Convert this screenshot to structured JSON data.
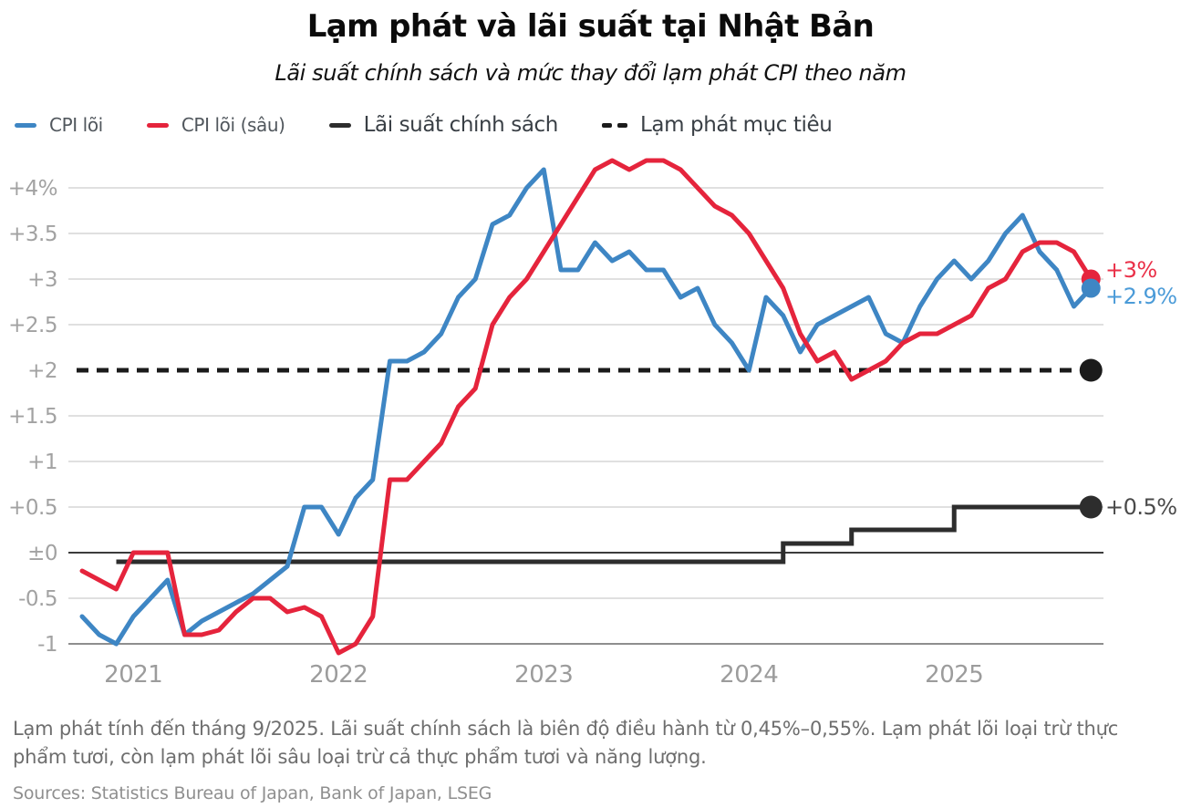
{
  "header": {
    "title": "Lạm phát và lãi suất tại Nhật Bản",
    "subtitle": "Lãi suất chính sách và mức thay đổi lạm phát CPI theo năm"
  },
  "legend": [
    {
      "label": "CPI lõi",
      "color": "#3E86C4",
      "line_style": "solid"
    },
    {
      "label": "CPI lõi (sâu)",
      "color": "#E5243C",
      "line_style": "solid"
    },
    {
      "label": "Lãi suất chính sách",
      "color": "#2D2D2D",
      "line_style": "solid"
    },
    {
      "label": "Lạm phát mục tiêu",
      "color": "#1B1B1B",
      "line_style": "dashed"
    }
  ],
  "chart_data": {
    "type": "line",
    "title": "Lạm phát và lãi suất tại Nhật Bản",
    "subtitle": "Lãi suất chính sách và mức thay đổi lạm phát CPI theo năm",
    "unit_hint": "%",
    "grid": true,
    "legend_position": "top-left",
    "start_month": "2020-10",
    "end_month": "2025-09",
    "ylim": [
      -1.3,
      4.4
    ],
    "x_ticks": [
      {
        "label": "2021",
        "month": "2021-01"
      },
      {
        "label": "2022",
        "month": "2022-01"
      },
      {
        "label": "2023",
        "month": "2023-01"
      },
      {
        "label": "2024",
        "month": "2024-01"
      },
      {
        "label": "2025",
        "month": "2025-01"
      }
    ],
    "y_ticks": [
      {
        "label": "+4%",
        "value": 4
      },
      {
        "label": "+3.5",
        "value": 3.5
      },
      {
        "label": "+3",
        "value": 3
      },
      {
        "label": "+2.5",
        "value": 2.5
      },
      {
        "label": "+2",
        "value": 2
      },
      {
        "label": "+1.5",
        "value": 1.5
      },
      {
        "label": "+1",
        "value": 1
      },
      {
        "label": "+0.5",
        "value": 0.5
      },
      {
        "label": "±0",
        "value": 0
      },
      {
        "label": "-0.5",
        "value": -0.5
      },
      {
        "label": "-1",
        "value": -1
      }
    ],
    "series": [
      {
        "name": "CPI lõi",
        "color": "#3E86C4",
        "end_label": {
          "text": "+2.9%",
          "color": "#4B9BD8"
        },
        "values": [
          -0.7,
          -0.9,
          -1.0,
          -0.7,
          -0.5,
          -0.3,
          -0.9,
          -0.75,
          -0.65,
          -0.55,
          -0.45,
          -0.3,
          -0.15,
          0.5,
          0.5,
          0.2,
          0.6,
          0.8,
          2.1,
          2.1,
          2.2,
          2.4,
          2.8,
          3.0,
          3.6,
          3.7,
          4.0,
          4.2,
          3.1,
          3.1,
          3.4,
          3.2,
          3.3,
          3.1,
          3.1,
          2.8,
          2.9,
          2.5,
          2.3,
          2.0,
          2.8,
          2.6,
          2.2,
          2.5,
          2.6,
          2.7,
          2.8,
          2.4,
          2.3,
          2.7,
          3.0,
          3.2,
          3.0,
          3.2,
          3.5,
          3.7,
          3.3,
          3.1,
          2.7,
          2.9
        ]
      },
      {
        "name": "CPI lõi (sâu)",
        "color": "#E5243C",
        "end_label": {
          "text": "+3%",
          "color": "#EA3048"
        },
        "values": [
          -0.2,
          -0.3,
          -0.4,
          0.0,
          0.0,
          0.0,
          -0.9,
          -0.9,
          -0.85,
          -0.65,
          -0.5,
          -0.5,
          -0.65,
          -0.6,
          -0.7,
          -1.1,
          -1.0,
          -0.7,
          0.8,
          0.8,
          1.0,
          1.2,
          1.6,
          1.8,
          2.5,
          2.8,
          3.0,
          3.3,
          3.6,
          3.9,
          4.2,
          4.3,
          4.2,
          4.3,
          4.3,
          4.2,
          4.0,
          3.8,
          3.7,
          3.5,
          3.2,
          2.9,
          2.4,
          2.1,
          2.2,
          1.9,
          2.0,
          2.1,
          2.3,
          2.4,
          2.4,
          2.5,
          2.6,
          2.9,
          3.0,
          3.3,
          3.4,
          3.4,
          3.3,
          3.0
        ]
      }
    ],
    "policy_rate": {
      "name": "Lãi suất chính sách",
      "color": "#2D2D2D",
      "end_label": {
        "text": "+0.5%",
        "color": "#4A4A4A"
      },
      "steps": [
        {
          "from": "2020-12",
          "to": "2024-03",
          "value": -0.1
        },
        {
          "from": "2024-03",
          "to": "2024-07",
          "value": 0.1
        },
        {
          "from": "2024-07",
          "to": "2025-01",
          "value": 0.25
        },
        {
          "from": "2025-01",
          "to": "2025-09",
          "value": 0.5
        }
      ]
    },
    "target_line": {
      "name": "Lạm phát mục tiêu",
      "value": 2,
      "style": "dashed",
      "color": "#1B1B1B"
    }
  },
  "footer": {
    "note": "Lạm phát tính đến tháng 9/2025. Lãi suất chính sách là biên độ điều hành từ 0,45%–0,55%. Lạm phát lõi loại trừ thực phẩm tươi, còn lạm phát lõi sâu loại trừ cả thực phẩm tươi và năng lượng.",
    "sources": "Sources: Statistics Bureau of Japan, Bank of Japan, LSEG"
  }
}
